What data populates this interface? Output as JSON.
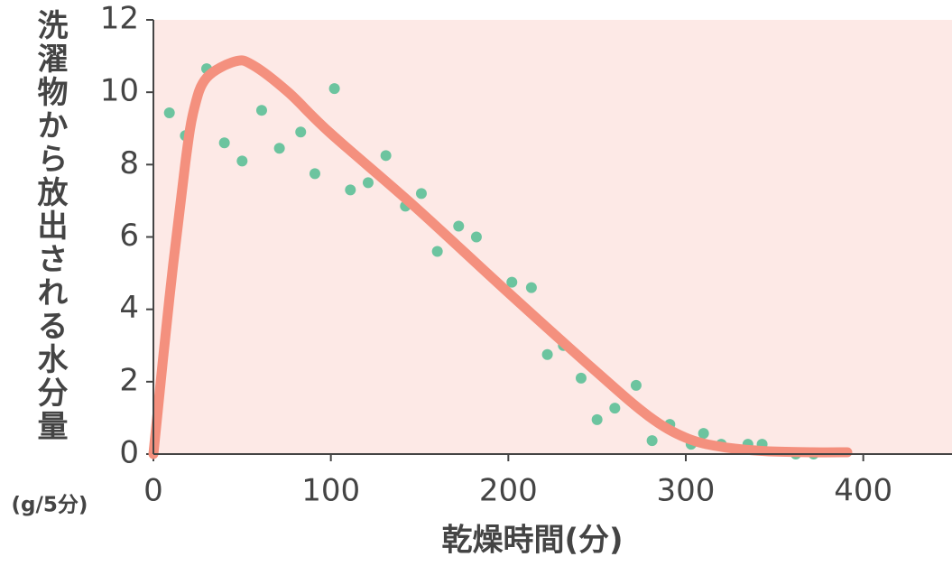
{
  "chart_data": {
    "type": "scatter",
    "ylabel": "洗濯物から放出される水分量",
    "yunit": "(g/5分)",
    "xlabel": "乾燥時間(分)",
    "xlim": [
      0,
      450
    ],
    "xticks": [
      0,
      100,
      200,
      300,
      400
    ],
    "ylim": [
      0,
      12
    ],
    "yticks": [
      0,
      2,
      4,
      6,
      8,
      10,
      12
    ],
    "background": "#fde9e6",
    "series": [
      {
        "type": "scatter",
        "color": "#6cc49f",
        "x": [
          9,
          18,
          30,
          40,
          50,
          61,
          71,
          83,
          91,
          102,
          111,
          121,
          131,
          142,
          151,
          160,
          172,
          182,
          202,
          213,
          222,
          231,
          241,
          250,
          260,
          272,
          281,
          291,
          303,
          310,
          320,
          335,
          343,
          362,
          372
        ],
        "values": [
          9.43,
          8.8,
          10.65,
          8.6,
          8.1,
          9.5,
          8.45,
          8.9,
          7.75,
          10.1,
          7.3,
          7.5,
          8.25,
          6.85,
          7.2,
          5.6,
          6.3,
          6.0,
          4.75,
          4.6,
          2.75,
          3.0,
          2.1,
          0.95,
          1.27,
          1.9,
          0.37,
          0.82,
          0.27,
          0.57,
          0.27,
          0.27,
          0.27,
          0,
          0
        ]
      },
      {
        "type": "line",
        "color": "#f4907e",
        "x": [
          0,
          9,
          18,
          23,
          30,
          46,
          56,
          76,
          99,
          147,
          198,
          249,
          279,
          300,
          320,
          345,
          371,
          391
        ],
        "values": [
          0,
          4.3,
          8.05,
          9.55,
          10.4,
          10.85,
          10.75,
          10.0,
          8.9,
          6.85,
          4.55,
          2.3,
          1.05,
          0.45,
          0.2,
          0.08,
          0.05,
          0.05
        ]
      }
    ]
  }
}
